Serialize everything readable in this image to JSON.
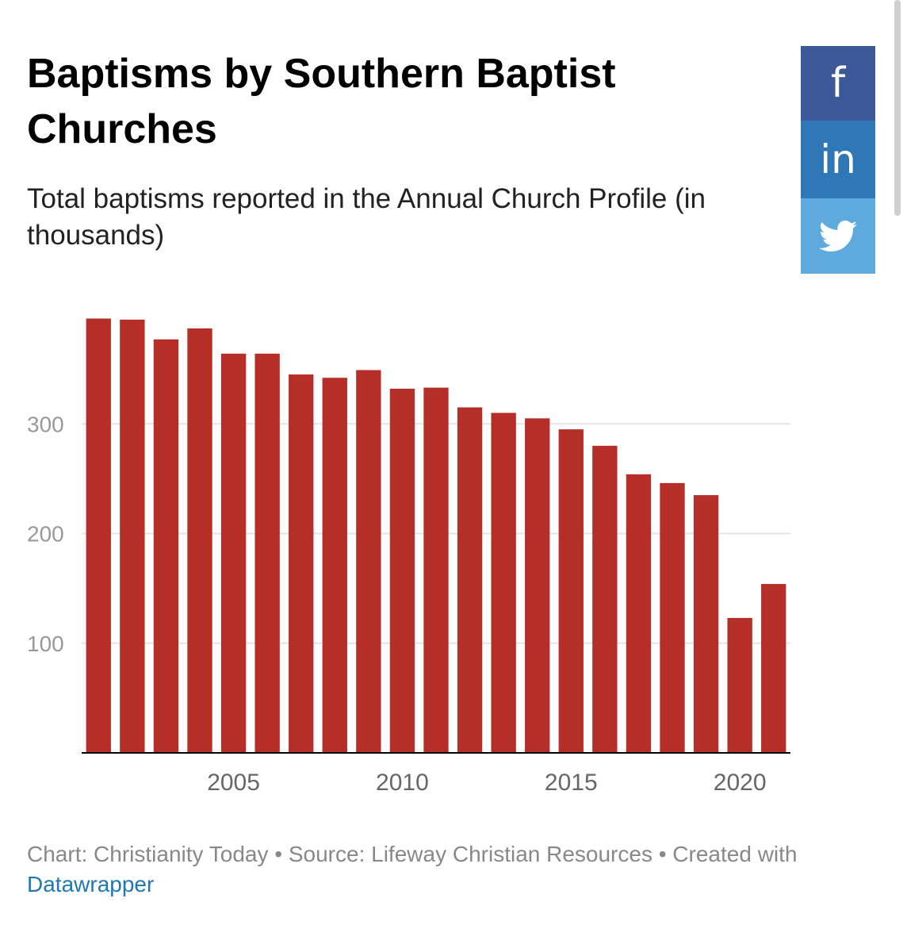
{
  "header": {
    "title_line1": "Baptisms by Southern Baptist",
    "title_line2": "Churches",
    "subtitle": "Total baptisms reported in the Annual Church Profile (in thousands)"
  },
  "share": {
    "facebook_label": "f",
    "linkedin_label": "in",
    "twitter_icon": "twitter-bird-icon",
    "colors": {
      "facebook": "#3b5998",
      "linkedin": "#2f77b6",
      "twitter": "#5ea9dd"
    }
  },
  "chart_data": {
    "type": "bar",
    "title": "Baptisms by Southern Baptist Churches",
    "subtitle": "Total baptisms reported in the Annual Church Profile (in thousands)",
    "xlabel": "",
    "ylabel": "",
    "categories": [
      2001,
      2002,
      2003,
      2004,
      2005,
      2006,
      2007,
      2008,
      2009,
      2010,
      2011,
      2012,
      2013,
      2014,
      2015,
      2016,
      2017,
      2018,
      2019,
      2020,
      2021
    ],
    "values": [
      396,
      395,
      377,
      387,
      364,
      364,
      345,
      342,
      349,
      332,
      333,
      315,
      310,
      305,
      295,
      280,
      254,
      246,
      235,
      123,
      154
    ],
    "x_ticks": [
      2005,
      2010,
      2015,
      2020
    ],
    "y_ticks": [
      100,
      200,
      300
    ],
    "ylim": [
      0,
      400
    ],
    "grid": true,
    "bar_color": "#b52e28",
    "gridline_color": "#e5e5e5",
    "tick_label_color": "#999999"
  },
  "footer": {
    "text": "Chart: Christianity Today • Source: Lifeway Christian Resources • Created with ",
    "link_text": "Datawrapper"
  }
}
